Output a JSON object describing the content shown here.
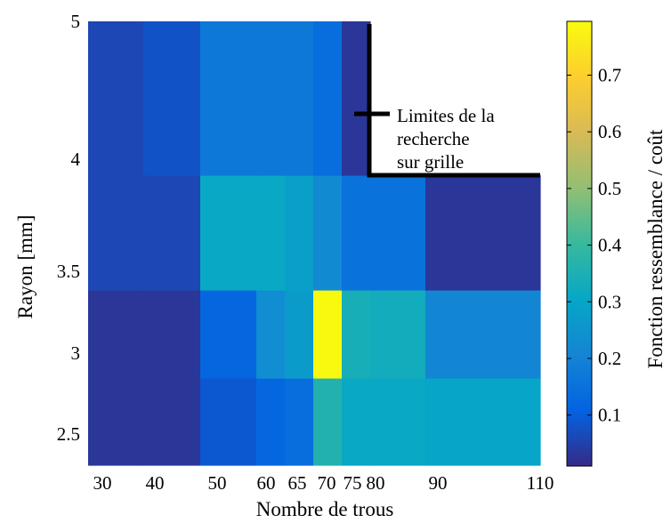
{
  "chart_data": {
    "type": "heatmap",
    "xlabel": "Nombre de trous",
    "ylabel": "Rayon [mm]",
    "colorbar_label": "Fonction ressemblance / coût",
    "x_ticks": [
      "30",
      "40",
      "50",
      "60",
      "65",
      "70",
      "75",
      "80",
      "90",
      "110"
    ],
    "y_ticks": [
      "2.5",
      "3",
      "3.5",
      "4",
      "5"
    ],
    "colorbar_ticks": [
      "0.1",
      "0.2",
      "0.3",
      "0.4",
      "0.5",
      "0.6",
      "0.7"
    ],
    "colorbar_range": [
      0.01,
      0.795
    ],
    "colormap": "parula",
    "x_categories": [
      30,
      40,
      50,
      60,
      65,
      70,
      75,
      80,
      90,
      110
    ],
    "y_categories": [
      2.5,
      3,
      3.5,
      4,
      5
    ],
    "values": [
      [
        0.03,
        0.03,
        0.09,
        0.12,
        0.14,
        0.36,
        0.31,
        0.31,
        0.3,
        0.3
      ],
      [
        0.03,
        0.03,
        0.12,
        0.23,
        0.27,
        0.79,
        0.34,
        0.33,
        0.21,
        0.21
      ],
      [
        0.06,
        0.06,
        0.31,
        0.31,
        0.28,
        0.22,
        0.15,
        0.15,
        0.03,
        0.03
      ],
      [
        0.06,
        0.08,
        0.17,
        0.17,
        0.17,
        0.14,
        0.03,
        null,
        null,
        null
      ],
      [
        0.06,
        0.08,
        0.17,
        0.17,
        0.17,
        0.14,
        0.03,
        null,
        null,
        null
      ]
    ],
    "annotation": {
      "legend_label_lines": [
        "Limites de la",
        "recherche",
        "sur grille"
      ],
      "boundary_color": "#000000"
    }
  }
}
